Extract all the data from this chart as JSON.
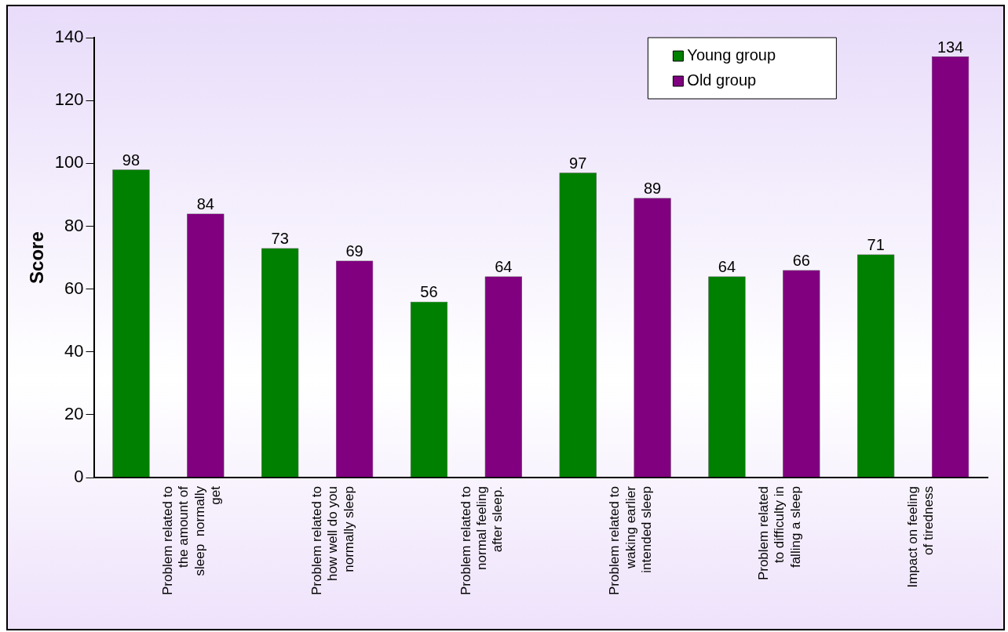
{
  "chart_data": {
    "type": "bar",
    "ylabel": "Score",
    "categories": [
      "Problem related to\nthe amount of\nsleep  normally\nget",
      "Problem related to\nhow well do you\nnormally sleep",
      "Problem related to\nnormal feeling\nafter sleep.",
      "Problem related to\nwaking earlier\nintended sleep",
      "Problem related\nto difficulty in\nfalling a sleep",
      "Impact on feeling\nof tiredness"
    ],
    "series": [
      {
        "name": "Young group",
        "color": "#008000",
        "values": [
          98,
          73,
          56,
          97,
          64,
          71
        ]
      },
      {
        "name": "Old group",
        "color": "#800080",
        "values": [
          84,
          69,
          64,
          89,
          66,
          134
        ]
      }
    ],
    "ylim": [
      0,
      140
    ],
    "yticks": [
      0,
      20,
      40,
      60,
      80,
      100,
      120,
      140
    ],
    "grid": false,
    "legend": "top right",
    "data_labels": true
  }
}
